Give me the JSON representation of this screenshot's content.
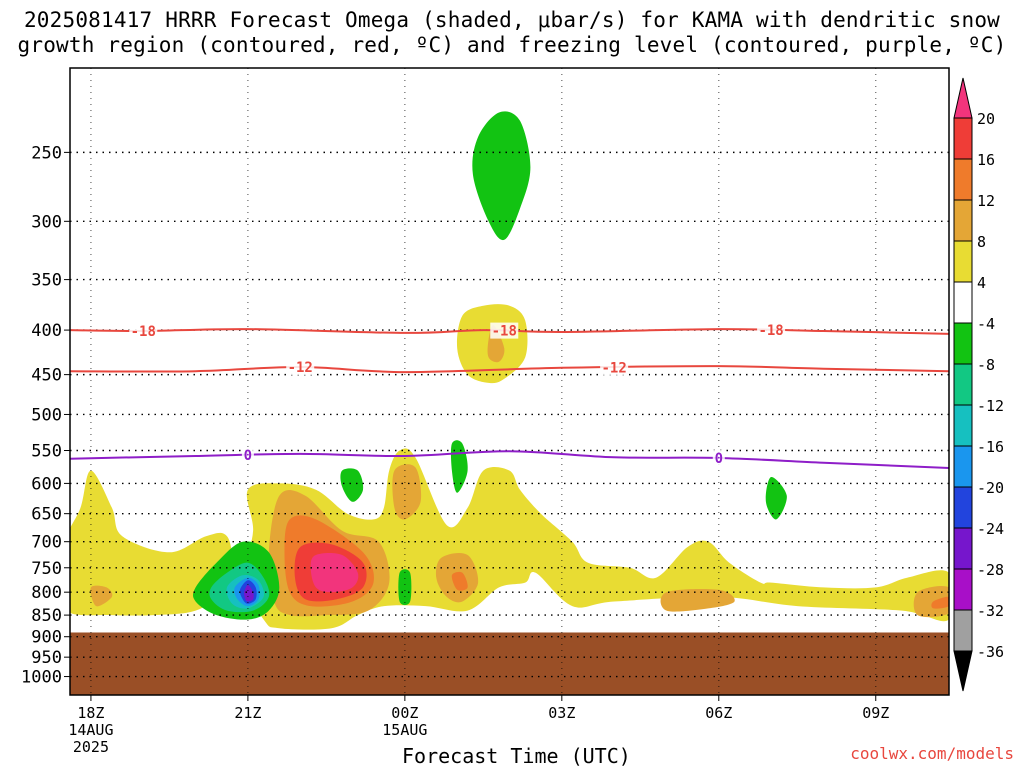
{
  "title": {
    "line1": "2025081417 HRRR Forecast Omega (shaded, μbar/s) for KAMA with dendritic snow",
    "line2": "growth region (contoured, red, ºC) and freezing level (contoured, purple, ºC)"
  },
  "credit": "coolwx.com/models",
  "chart_data": {
    "type": "heatmap",
    "xlabel": "Forecast Time (UTC)",
    "x_range_hours": [
      -0.4,
      16.4
    ],
    "x_ticks": [
      {
        "hour": 0,
        "label": "18Z",
        "sub1": "14AUG",
        "sub2": "2025"
      },
      {
        "hour": 3,
        "label": "21Z",
        "sub1": "",
        "sub2": ""
      },
      {
        "hour": 6,
        "label": "00Z",
        "sub1": "15AUG",
        "sub2": ""
      },
      {
        "hour": 9,
        "label": "03Z",
        "sub1": "",
        "sub2": ""
      },
      {
        "hour": 12,
        "label": "06Z",
        "sub1": "",
        "sub2": ""
      },
      {
        "hour": 15,
        "label": "09Z",
        "sub1": "",
        "sub2": ""
      }
    ],
    "y_scale": "log-pressure",
    "y_range_hpa": [
      200,
      1050
    ],
    "y_ticks": [
      "250",
      "300",
      "350",
      "400",
      "450",
      "500",
      "550",
      "600",
      "650",
      "700",
      "750",
      "800",
      "850",
      "900",
      "950",
      "1000"
    ],
    "ground_level_hpa": 890,
    "ground_color": "#9a4f26",
    "colorbar": {
      "labels": [
        "20",
        "16",
        "12",
        "8",
        "4",
        "-4",
        "-8",
        "-12",
        "-16",
        "-20",
        "-24",
        "-28",
        "-32",
        "-36"
      ],
      "colors": [
        "#f2347c",
        "#ef3d37",
        "#ef7b2b",
        "#e4a636",
        "#e8dc33",
        "#ffffff",
        "#12c312",
        "#12c883",
        "#16c0c0",
        "#1a96ee",
        "#2244dd",
        "#7616cc",
        "#a80fc8",
        "#a0a0a0"
      ]
    },
    "contours": [
      {
        "kind": "dendritic",
        "label": "-18",
        "color": "#e8473e",
        "points": [
          [
            -0.4,
            400
          ],
          [
            1,
            401
          ],
          [
            3,
            399
          ],
          [
            6,
            403
          ],
          [
            7.5,
            400
          ],
          [
            9,
            402
          ],
          [
            12,
            399
          ],
          [
            14,
            401
          ],
          [
            16.4,
            404
          ]
        ],
        "label_hours": [
          1.0,
          7.9,
          13.0
        ]
      },
      {
        "kind": "dendritic",
        "label": "-12",
        "color": "#e8473e",
        "points": [
          [
            -0.4,
            446
          ],
          [
            2,
            446
          ],
          [
            4,
            441
          ],
          [
            6,
            447
          ],
          [
            9,
            442
          ],
          [
            12,
            440
          ],
          [
            14,
            443
          ],
          [
            16.4,
            446
          ]
        ],
        "label_hours": [
          4.0,
          10.0
        ]
      },
      {
        "kind": "freezing",
        "label": "0",
        "color": "#8e1ec8",
        "points": [
          [
            -0.4,
            562
          ],
          [
            2,
            558
          ],
          [
            4,
            555
          ],
          [
            6,
            558
          ],
          [
            8,
            551
          ],
          [
            10,
            560
          ],
          [
            12,
            561
          ],
          [
            14,
            568
          ],
          [
            16.4,
            576
          ]
        ],
        "label_hours": [
          3.0,
          12.0
        ]
      }
    ],
    "shaded_regions": [
      {
        "level": "4",
        "color": "#e8dc33",
        "points": [
          [
            -0.4,
            845
          ],
          [
            -0.6,
            800
          ],
          [
            -0.5,
            700
          ],
          [
            -0.2,
            640
          ],
          [
            0,
            580
          ],
          [
            0.4,
            640
          ],
          [
            0.6,
            690
          ],
          [
            1.5,
            720
          ],
          [
            2.2,
            690
          ],
          [
            2.6,
            690
          ],
          [
            2.8,
            760
          ],
          [
            3.3,
            860
          ],
          [
            3.6,
            880
          ],
          [
            4.6,
            880
          ],
          [
            5.1,
            850
          ],
          [
            5.6,
            830
          ],
          [
            6.4,
            830
          ],
          [
            7.2,
            840
          ],
          [
            7.8,
            790
          ],
          [
            8.3,
            780
          ],
          [
            8.5,
            760
          ],
          [
            9.2,
            830
          ],
          [
            10,
            820
          ],
          [
            12,
            810
          ],
          [
            13.5,
            830
          ],
          [
            15.5,
            840
          ],
          [
            16.4,
            860
          ],
          [
            16.4,
            760
          ],
          [
            15.6,
            770
          ],
          [
            15,
            790
          ],
          [
            14,
            790
          ],
          [
            13,
            780
          ],
          [
            12.8,
            780
          ],
          [
            12.2,
            740
          ],
          [
            11.8,
            700
          ],
          [
            11.4,
            710
          ],
          [
            10.8,
            770
          ],
          [
            10.3,
            750
          ],
          [
            9.5,
            740
          ],
          [
            9.2,
            700
          ],
          [
            8.6,
            650
          ],
          [
            8.2,
            610
          ],
          [
            8.0,
            580
          ],
          [
            7.5,
            580
          ],
          [
            7.2,
            640
          ],
          [
            6.8,
            670
          ],
          [
            6.2,
            560
          ],
          [
            5.9,
            550
          ],
          [
            5.7,
            580
          ],
          [
            5.6,
            640
          ],
          [
            5.4,
            660
          ],
          [
            4.9,
            650
          ],
          [
            4.3,
            610
          ],
          [
            3.6,
            600
          ],
          [
            3.0,
            610
          ],
          [
            3.1,
            680
          ],
          [
            2.9,
            740
          ],
          [
            2.5,
            800
          ],
          [
            2.0,
            840
          ],
          [
            1.2,
            850
          ],
          [
            0.4,
            850
          ]
        ]
      },
      {
        "level": "4",
        "color": "#e8dc33",
        "points": [
          [
            7.1,
            385
          ],
          [
            7.5,
            375
          ],
          [
            8.0,
            375
          ],
          [
            8.3,
            390
          ],
          [
            8.3,
            430
          ],
          [
            7.9,
            455
          ],
          [
            7.6,
            460
          ],
          [
            7.2,
            450
          ],
          [
            7.0,
            420
          ]
        ]
      },
      {
        "level": "8",
        "color": "#e4a636",
        "points": [
          [
            7.7,
            395
          ],
          [
            7.9,
            420
          ],
          [
            7.8,
            435
          ],
          [
            7.6,
            430
          ],
          [
            7.6,
            410
          ]
        ]
      },
      {
        "level": "8",
        "color": "#e4a636",
        "points": [
          [
            3.6,
            620
          ],
          [
            4.1,
            620
          ],
          [
            4.8,
            680
          ],
          [
            5.5,
            700
          ],
          [
            5.7,
            780
          ],
          [
            5.3,
            840
          ],
          [
            4.5,
            850
          ],
          [
            3.8,
            850
          ],
          [
            3.5,
            820
          ],
          [
            3.4,
            720
          ]
        ]
      },
      {
        "level": "8",
        "color": "#e4a636",
        "points": [
          [
            5.8,
            580
          ],
          [
            6.2,
            575
          ],
          [
            6.3,
            630
          ],
          [
            6.0,
            660
          ],
          [
            5.8,
            640
          ]
        ]
      },
      {
        "level": "8",
        "color": "#e4a636",
        "points": [
          [
            6.7,
            730
          ],
          [
            7.2,
            725
          ],
          [
            7.4,
            780
          ],
          [
            7.1,
            820
          ],
          [
            6.8,
            810
          ],
          [
            6.6,
            770
          ]
        ]
      },
      {
        "level": "8",
        "color": "#e4a636",
        "points": [
          [
            11.0,
            800
          ],
          [
            12.0,
            795
          ],
          [
            12.3,
            820
          ],
          [
            11.8,
            835
          ],
          [
            11.0,
            840
          ]
        ]
      },
      {
        "level": "8",
        "color": "#e4a636",
        "points": [
          [
            15.8,
            800
          ],
          [
            16.4,
            790
          ],
          [
            16.4,
            845
          ],
          [
            15.8,
            850
          ]
        ]
      },
      {
        "level": "8",
        "color": "#e4a636",
        "points": [
          [
            0,
            790
          ],
          [
            0.3,
            790
          ],
          [
            0.4,
            810
          ],
          [
            0.1,
            830
          ]
        ]
      },
      {
        "level": "12",
        "color": "#ef7b2b",
        "points": [
          [
            3.8,
            660
          ],
          [
            4.3,
            660
          ],
          [
            5.2,
            720
          ],
          [
            5.4,
            780
          ],
          [
            5.0,
            820
          ],
          [
            4.2,
            830
          ],
          [
            3.8,
            800
          ],
          [
            3.7,
            720
          ]
        ]
      },
      {
        "level": "12",
        "color": "#ef7b2b",
        "points": [
          [
            16.1,
            820
          ],
          [
            16.4,
            810
          ],
          [
            16.4,
            830
          ],
          [
            16.1,
            835
          ]
        ]
      },
      {
        "level": "12",
        "color": "#ef7b2b",
        "points": [
          [
            6.9,
            765
          ],
          [
            7.1,
            760
          ],
          [
            7.2,
            790
          ],
          [
            7.0,
            795
          ]
        ]
      },
      {
        "level": "16",
        "color": "#ef3d37",
        "points": [
          [
            4.0,
            710
          ],
          [
            4.6,
            705
          ],
          [
            5.2,
            740
          ],
          [
            5.2,
            790
          ],
          [
            4.7,
            815
          ],
          [
            4.1,
            815
          ],
          [
            3.9,
            770
          ]
        ]
      },
      {
        "level": "20",
        "color": "#f2347c",
        "points": [
          [
            4.3,
            725
          ],
          [
            4.8,
            725
          ],
          [
            5.1,
            760
          ],
          [
            5.0,
            790
          ],
          [
            4.6,
            800
          ],
          [
            4.3,
            790
          ],
          [
            4.2,
            750
          ]
        ]
      },
      {
        "level": "-4",
        "color": "#12c312",
        "points": [
          [
            7.4,
            240
          ],
          [
            7.8,
            225
          ],
          [
            8.2,
            230
          ],
          [
            8.4,
            260
          ],
          [
            8.2,
            290
          ],
          [
            7.9,
            315
          ],
          [
            7.6,
            300
          ],
          [
            7.3,
            265
          ]
        ]
      },
      {
        "level": "-4",
        "color": "#12c312",
        "points": [
          [
            2.0,
            790
          ],
          [
            2.4,
            740
          ],
          [
            2.9,
            700
          ],
          [
            3.4,
            720
          ],
          [
            3.6,
            790
          ],
          [
            3.4,
            840
          ],
          [
            3.0,
            860
          ],
          [
            2.4,
            850
          ],
          [
            2.0,
            820
          ]
        ]
      },
      {
        "level": "-4",
        "color": "#12c312",
        "points": [
          [
            4.8,
            580
          ],
          [
            5.1,
            580
          ],
          [
            5.2,
            610
          ],
          [
            5.0,
            630
          ],
          [
            4.8,
            605
          ]
        ]
      },
      {
        "level": "-4",
        "color": "#12c312",
        "points": [
          [
            6.9,
            540
          ],
          [
            7.1,
            540
          ],
          [
            7.2,
            580
          ],
          [
            7.0,
            615
          ],
          [
            6.9,
            580
          ]
        ]
      },
      {
        "level": "-4",
        "color": "#12c312",
        "points": [
          [
            13.0,
            590
          ],
          [
            13.3,
            620
          ],
          [
            13.1,
            660
          ],
          [
            12.9,
            630
          ]
        ]
      },
      {
        "level": "-4",
        "color": "#12c312",
        "points": [
          [
            5.9,
            760
          ],
          [
            6.1,
            760
          ],
          [
            6.1,
            820
          ],
          [
            5.9,
            820
          ]
        ]
      },
      {
        "level": "-8",
        "color": "#12c883",
        "points": [
          [
            2.3,
            790
          ],
          [
            2.6,
            760
          ],
          [
            3.0,
            740
          ],
          [
            3.3,
            770
          ],
          [
            3.4,
            810
          ],
          [
            3.1,
            840
          ],
          [
            2.6,
            840
          ],
          [
            2.3,
            815
          ]
        ]
      },
      {
        "level": "-12",
        "color": "#16c0c0",
        "points": [
          [
            2.6,
            790
          ],
          [
            2.9,
            765
          ],
          [
            3.2,
            775
          ],
          [
            3.3,
            810
          ],
          [
            3.0,
            835
          ],
          [
            2.7,
            825
          ]
        ]
      },
      {
        "level": "-16",
        "color": "#1a96ee",
        "points": [
          [
            2.75,
            790
          ],
          [
            3.0,
            770
          ],
          [
            3.2,
            785
          ],
          [
            3.2,
            815
          ],
          [
            3.0,
            830
          ],
          [
            2.8,
            815
          ]
        ]
      },
      {
        "level": "-20",
        "color": "#2244dd",
        "points": [
          [
            2.85,
            795
          ],
          [
            3.0,
            775
          ],
          [
            3.15,
            790
          ],
          [
            3.15,
            815
          ],
          [
            3.0,
            825
          ],
          [
            2.9,
            815
          ]
        ]
      },
      {
        "level": "-24",
        "color": "#7616cc",
        "points": [
          [
            2.93,
            800
          ],
          [
            3.0,
            785
          ],
          [
            3.1,
            800
          ],
          [
            3.1,
            815
          ],
          [
            3.0,
            820
          ],
          [
            2.95,
            815
          ]
        ]
      }
    ]
  }
}
